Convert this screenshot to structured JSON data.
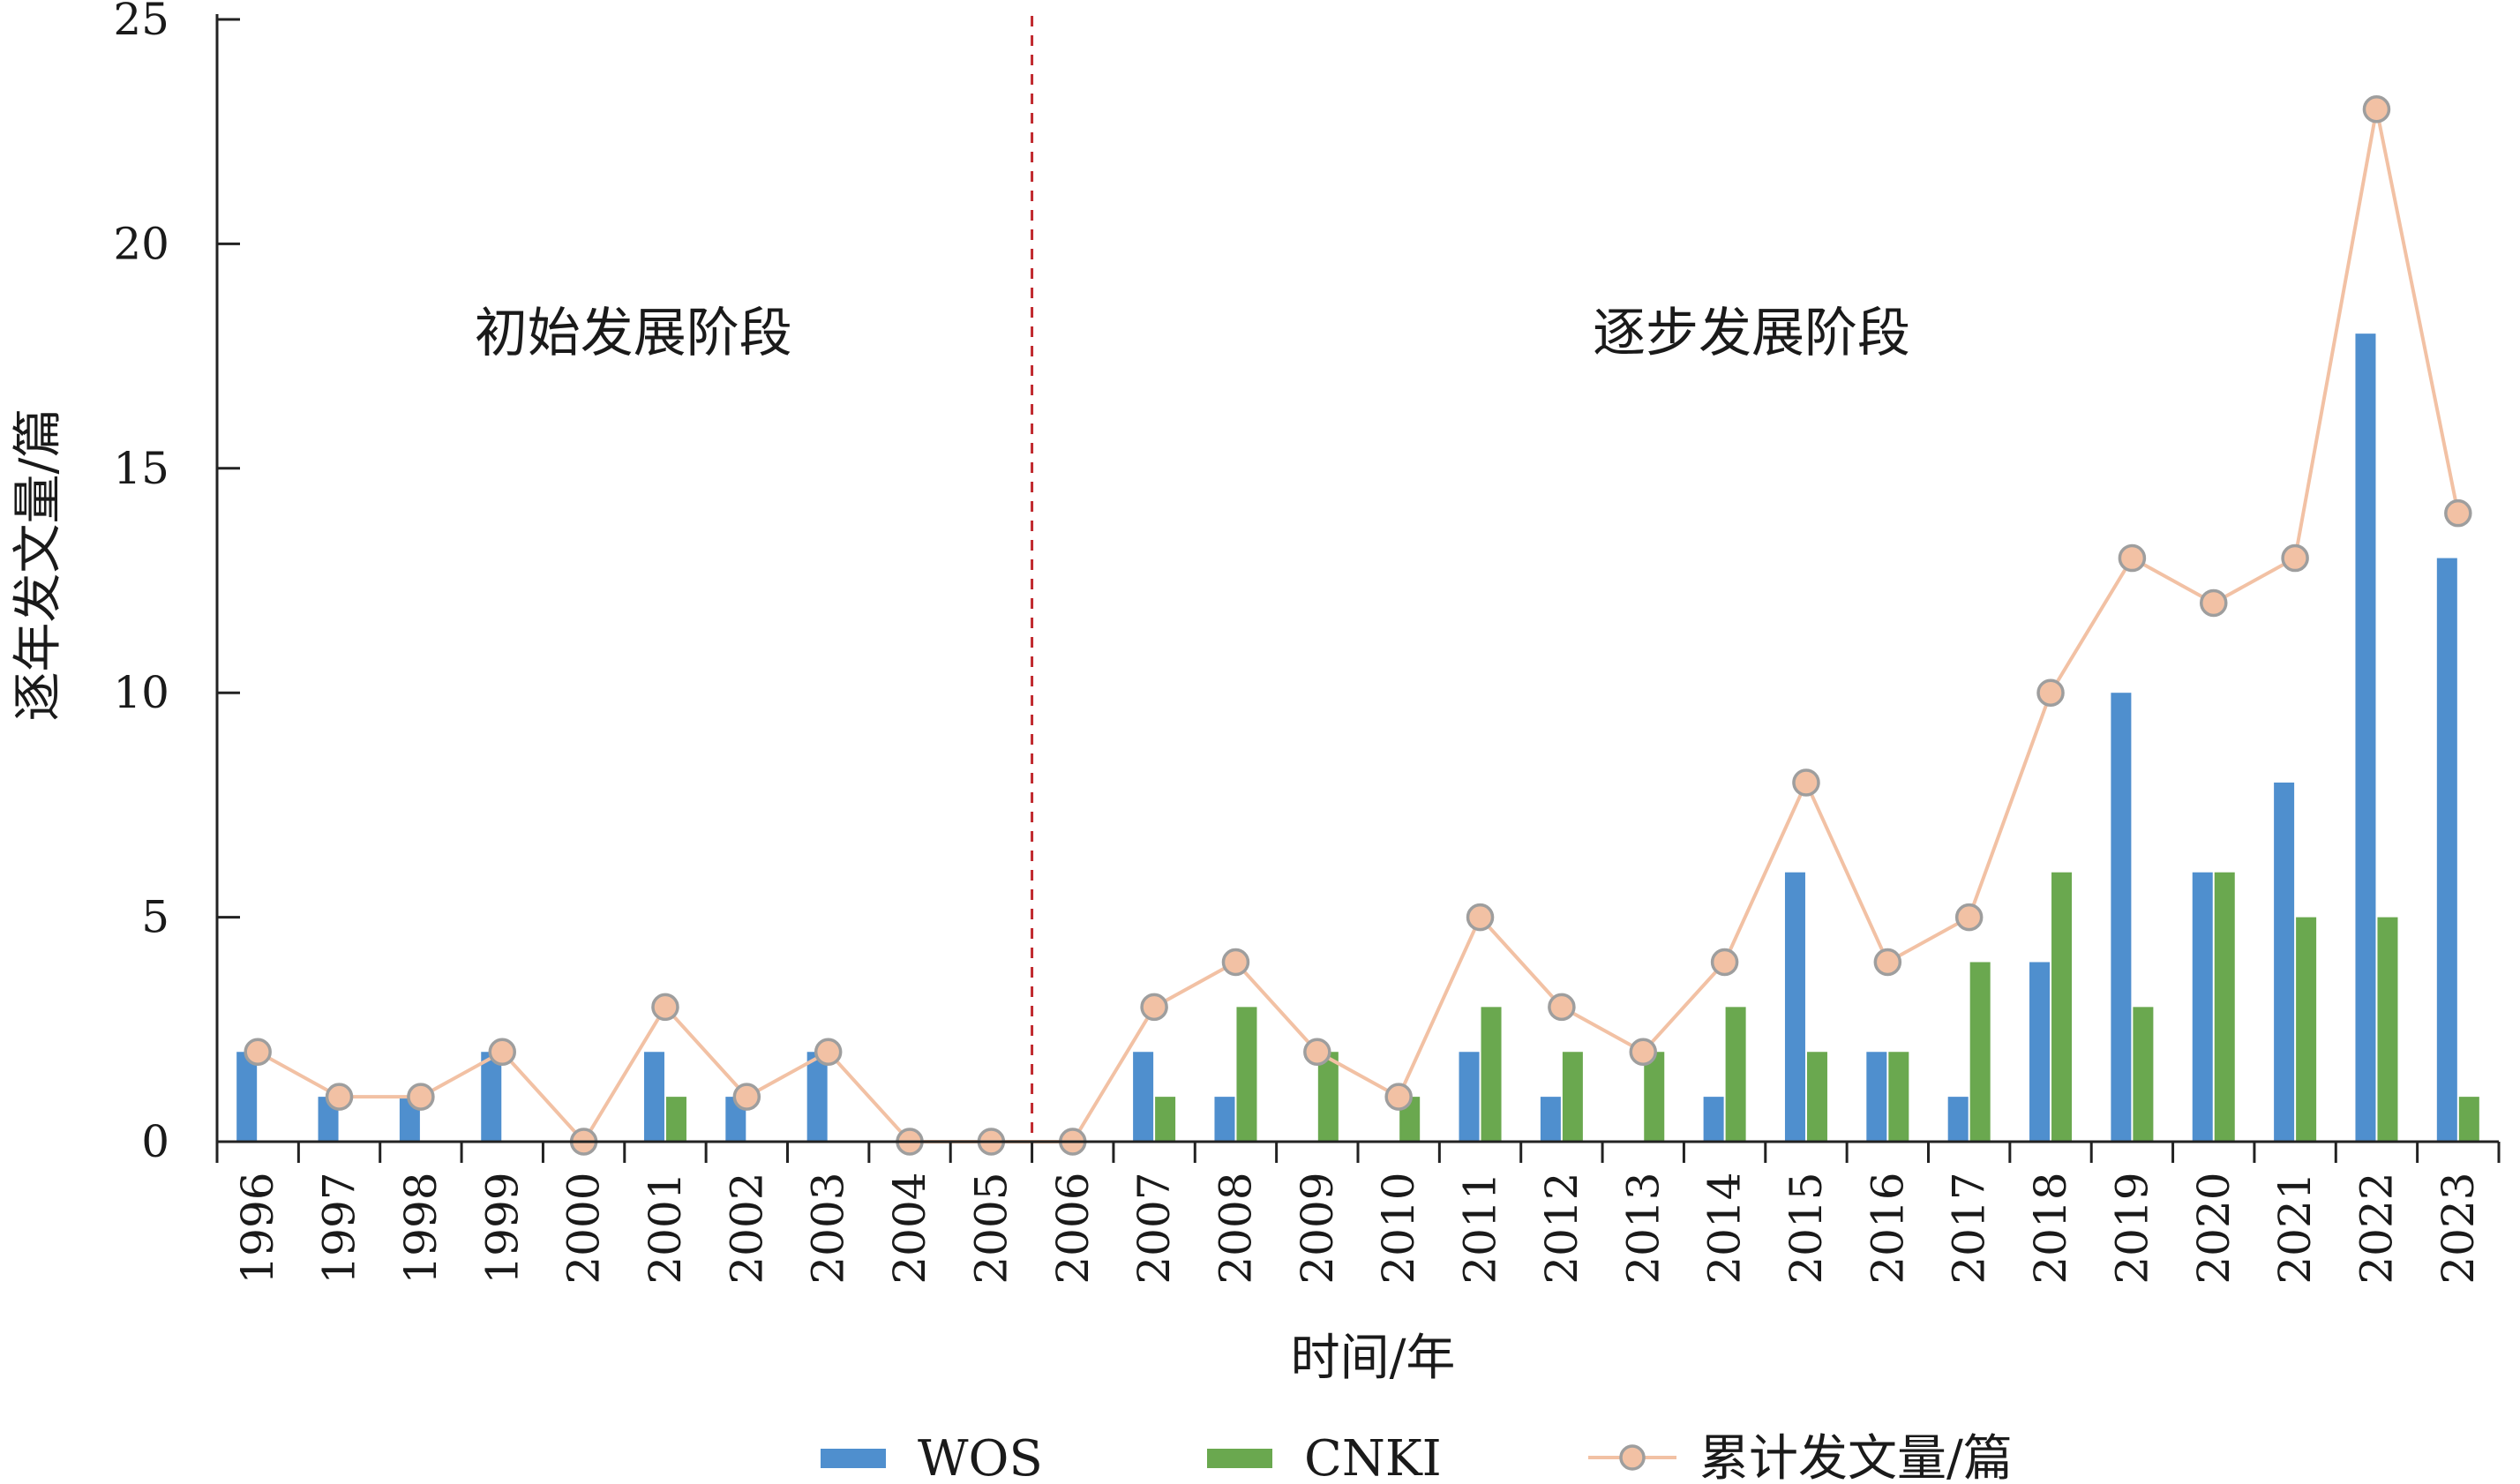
{
  "chart_data": {
    "type": "bar",
    "title": "",
    "xlabel": "时间/年",
    "ylabel": "逐年发文量/篇",
    "ylim": [
      0,
      25
    ],
    "yticks": [
      "0",
      "5",
      "10",
      "15",
      "20",
      "25"
    ],
    "categories": [
      "1996",
      "1997",
      "1998",
      "1999",
      "2000",
      "2001",
      "2002",
      "2003",
      "2004",
      "2005",
      "2006",
      "2007",
      "2008",
      "2009",
      "2010",
      "2011",
      "2012",
      "2013",
      "2014",
      "2015",
      "2016",
      "2017",
      "2018",
      "2019",
      "2020",
      "2021",
      "2022",
      "2023"
    ],
    "series": [
      {
        "name": "WOS",
        "type": "bar",
        "color": "#4f8fce",
        "values": [
          2,
          1,
          1,
          2,
          0,
          2,
          1,
          2,
          0,
          0,
          0,
          2,
          1,
          0,
          0,
          2,
          1,
          0,
          1,
          6,
          2,
          1,
          4,
          10,
          6,
          8,
          18,
          13
        ]
      },
      {
        "name": "CNKI",
        "type": "bar",
        "color": "#6aa84f",
        "values": [
          0,
          0,
          0,
          0,
          0,
          1,
          0,
          0,
          0,
          0,
          0,
          1,
          3,
          2,
          1,
          3,
          2,
          2,
          3,
          2,
          2,
          4,
          6,
          3,
          6,
          5,
          5,
          1
        ]
      },
      {
        "name": "累计发文量/篇",
        "type": "line",
        "color": "#f2c1a4",
        "marker_fill": "#f2c1a4",
        "marker_stroke": "#9e9e9e",
        "values": [
          2,
          1,
          1,
          2,
          0,
          3,
          1,
          2,
          0,
          0,
          0,
          3,
          4,
          2,
          1,
          5,
          3,
          2,
          4,
          8,
          4,
          5,
          10,
          13,
          12,
          13,
          23,
          14
        ]
      }
    ],
    "annotations": [
      {
        "text": "初始发展阶段",
        "region": "left"
      },
      {
        "text": "逐步发展阶段",
        "region": "right"
      }
    ],
    "divider": {
      "between": [
        "2005",
        "2006"
      ],
      "style": "dashed",
      "color": "#c0282d"
    },
    "legend": {
      "position": "bottom"
    },
    "grid": false
  }
}
